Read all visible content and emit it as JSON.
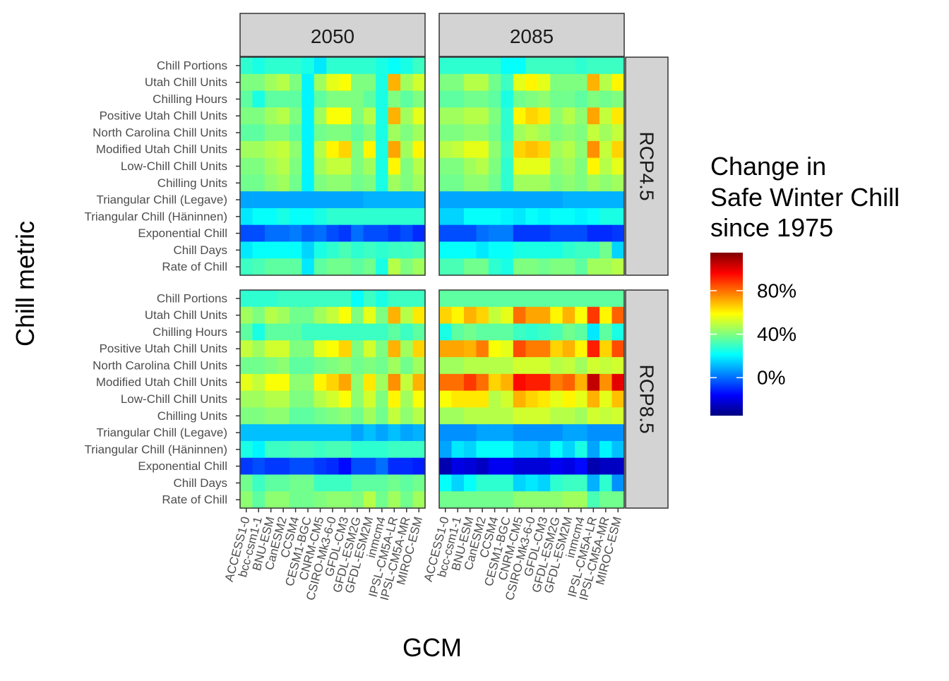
{
  "chart_data": {
    "type": "heatmap",
    "xlabel": "GCM",
    "ylabel": "Chill metric",
    "legend": {
      "title_lines": [
        "Change in",
        "Safe Winter Chill",
        "since 1975"
      ],
      "ticks": [
        {
          "value": 0,
          "label": "0%"
        },
        {
          "value": 40,
          "label": "40%"
        },
        {
          "value": 80,
          "label": "80%"
        }
      ],
      "range": [
        -35,
        115
      ],
      "placement": "right"
    },
    "colorscale": [
      "#00007f",
      "#0000ff",
      "#007fff",
      "#00ffff",
      "#7fff7f",
      "#ffff00",
      "#ff7f00",
      "#ff0000",
      "#7f0000"
    ],
    "facet_columns": [
      "2050",
      "2085"
    ],
    "facet_rows": [
      "RCP4.5",
      "RCP8.5"
    ],
    "gcms": [
      "ACCESS1-0",
      "bcc-csm1-1",
      "BNU-ESM",
      "CanESM2",
      "CCSM4",
      "CESM1-BGC",
      "CNRM-CM5",
      "CSIRO-Mk3-6-0",
      "GFDL-CM3",
      "GFDL-ESM2G",
      "GFDL-ESM2M",
      "inmcm4",
      "IPSL-CM5A-LR",
      "IPSL-CM5A-MR",
      "MIROC-ESM"
    ],
    "metrics": [
      "Chill Portions",
      "Utah Chill Units",
      "Chilling Hours",
      "Positive Utah Chill Units",
      "North Carolina Chill Units",
      "Modified Utah Chill Units",
      "Low-Chill Chill Units",
      "Chilling Units",
      "Triangular Chill (Legave)",
      "Triangular Chill (Häninnen)",
      "Exponential Chill",
      "Chill Days",
      "Rate of Chill"
    ],
    "panels": [
      {
        "year": "2050",
        "scenario": "RCP4.5",
        "values": [
          [
            28,
            25,
            28,
            28,
            28,
            25,
            18,
            28,
            28,
            28,
            28,
            25,
            22,
            25,
            30
          ],
          [
            40,
            40,
            45,
            48,
            40,
            20,
            45,
            55,
            58,
            40,
            40,
            25,
            70,
            45,
            52
          ],
          [
            35,
            25,
            35,
            35,
            35,
            20,
            35,
            40,
            40,
            40,
            35,
            25,
            40,
            35,
            40
          ],
          [
            40,
            40,
            45,
            48,
            40,
            20,
            45,
            58,
            58,
            40,
            48,
            25,
            70,
            45,
            55
          ],
          [
            35,
            35,
            40,
            40,
            35,
            20,
            38,
            40,
            40,
            35,
            40,
            25,
            45,
            40,
            45
          ],
          [
            45,
            45,
            48,
            50,
            42,
            20,
            48,
            60,
            65,
            40,
            60,
            25,
            72,
            45,
            60
          ],
          [
            40,
            40,
            45,
            48,
            40,
            20,
            45,
            50,
            50,
            40,
            45,
            25,
            60,
            40,
            48
          ],
          [
            38,
            38,
            42,
            45,
            38,
            20,
            40,
            42,
            42,
            38,
            40,
            25,
            45,
            40,
            45
          ],
          [
            8,
            8,
            8,
            8,
            8,
            8,
            8,
            8,
            8,
            8,
            10,
            10,
            10,
            10,
            10
          ],
          [
            18,
            22,
            22,
            25,
            22,
            22,
            25,
            28,
            28,
            28,
            28,
            28,
            28,
            28,
            28
          ],
          [
            -5,
            -5,
            0,
            0,
            2,
            -2,
            0,
            -5,
            -8,
            0,
            -5,
            -5,
            -8,
            -5,
            -10
          ],
          [
            18,
            22,
            22,
            22,
            22,
            15,
            25,
            28,
            32,
            28,
            30,
            28,
            30,
            30,
            32
          ],
          [
            30,
            32,
            35,
            35,
            35,
            18,
            35,
            38,
            38,
            35,
            38,
            25,
            48,
            40,
            45
          ]
        ]
      },
      {
        "year": "2085",
        "scenario": "RCP4.5",
        "values": [
          [
            28,
            28,
            28,
            28,
            28,
            22,
            22,
            30,
            30,
            30,
            30,
            28,
            30,
            30,
            30
          ],
          [
            40,
            40,
            48,
            48,
            38,
            30,
            55,
            60,
            55,
            40,
            40,
            40,
            70,
            48,
            60
          ],
          [
            35,
            35,
            38,
            38,
            35,
            25,
            38,
            40,
            42,
            38,
            38,
            35,
            40,
            38,
            40
          ],
          [
            45,
            45,
            48,
            48,
            40,
            28,
            60,
            65,
            62,
            42,
            48,
            42,
            72,
            50,
            62
          ],
          [
            40,
            40,
            42,
            42,
            38,
            28,
            45,
            48,
            45,
            40,
            42,
            40,
            50,
            45,
            50
          ],
          [
            48,
            50,
            55,
            55,
            42,
            30,
            65,
            68,
            65,
            45,
            48,
            42,
            75,
            50,
            65
          ],
          [
            40,
            40,
            45,
            48,
            40,
            28,
            55,
            55,
            55,
            42,
            45,
            40,
            60,
            48,
            55
          ],
          [
            38,
            38,
            42,
            42,
            38,
            28,
            45,
            45,
            45,
            40,
            42,
            40,
            45,
            42,
            45
          ],
          [
            8,
            8,
            8,
            8,
            8,
            8,
            8,
            8,
            8,
            8,
            10,
            10,
            10,
            10,
            10
          ],
          [
            15,
            15,
            22,
            22,
            22,
            20,
            18,
            22,
            20,
            22,
            22,
            20,
            22,
            25,
            25
          ],
          [
            -5,
            -5,
            -5,
            0,
            2,
            2,
            -8,
            -8,
            -8,
            -5,
            -5,
            -5,
            -10,
            -10,
            -8
          ],
          [
            22,
            22,
            22,
            18,
            22,
            22,
            25,
            25,
            25,
            25,
            28,
            30,
            30,
            38,
            15
          ],
          [
            32,
            32,
            38,
            38,
            28,
            25,
            40,
            40,
            38,
            40,
            40,
            35,
            45,
            45,
            48
          ]
        ]
      },
      {
        "year": "2050",
        "scenario": "RCP8.5",
        "values": [
          [
            28,
            28,
            28,
            30,
            30,
            30,
            30,
            30,
            30,
            22,
            30,
            25,
            30,
            30,
            30
          ],
          [
            45,
            40,
            48,
            45,
            38,
            38,
            45,
            50,
            58,
            40,
            55,
            40,
            70,
            48,
            62
          ],
          [
            35,
            25,
            35,
            35,
            35,
            30,
            30,
            30,
            30,
            30,
            30,
            30,
            35,
            30,
            35
          ],
          [
            50,
            45,
            52,
            52,
            40,
            40,
            55,
            58,
            65,
            40,
            52,
            40,
            70,
            45,
            65
          ],
          [
            38,
            38,
            40,
            42,
            35,
            35,
            38,
            40,
            42,
            38,
            40,
            38,
            45,
            38,
            45
          ],
          [
            55,
            50,
            58,
            58,
            42,
            42,
            60,
            65,
            72,
            42,
            62,
            45,
            75,
            50,
            70
          ],
          [
            45,
            45,
            48,
            48,
            40,
            40,
            48,
            52,
            58,
            42,
            52,
            40,
            60,
            45,
            58
          ],
          [
            40,
            40,
            42,
            42,
            35,
            35,
            38,
            40,
            42,
            38,
            45,
            38,
            50,
            42,
            48
          ],
          [
            12,
            12,
            12,
            12,
            12,
            12,
            12,
            12,
            12,
            8,
            12,
            8,
            12,
            8,
            10
          ],
          [
            25,
            20,
            30,
            30,
            32,
            32,
            30,
            32,
            32,
            28,
            28,
            28,
            30,
            30,
            30
          ],
          [
            -8,
            -5,
            -8,
            -8,
            -5,
            -5,
            -8,
            -10,
            -15,
            -5,
            -5,
            0,
            -10,
            -10,
            -12
          ],
          [
            38,
            30,
            35,
            35,
            38,
            38,
            30,
            30,
            30,
            35,
            35,
            35,
            38,
            35,
            38
          ],
          [
            42,
            35,
            42,
            42,
            38,
            38,
            40,
            42,
            42,
            40,
            48,
            38,
            45,
            38,
            45
          ]
        ]
      },
      {
        "year": "2085",
        "scenario": "RCP8.5",
        "values": [
          [
            35,
            35,
            35,
            35,
            35,
            35,
            35,
            35,
            35,
            35,
            35,
            35,
            35,
            35,
            35
          ],
          [
            65,
            60,
            70,
            65,
            50,
            55,
            80,
            72,
            72,
            60,
            70,
            58,
            88,
            60,
            82
          ],
          [
            25,
            35,
            38,
            35,
            35,
            35,
            30,
            28,
            30,
            32,
            38,
            35,
            18,
            35,
            25
          ],
          [
            72,
            72,
            70,
            78,
            58,
            55,
            85,
            78,
            78,
            65,
            70,
            60,
            92,
            65,
            85
          ],
          [
            45,
            45,
            48,
            48,
            48,
            48,
            52,
            52,
            52,
            48,
            50,
            45,
            52,
            50,
            52
          ],
          [
            80,
            80,
            88,
            80,
            65,
            70,
            95,
            92,
            92,
            78,
            82,
            70,
            105,
            75,
            100
          ],
          [
            58,
            62,
            62,
            62,
            48,
            52,
            70,
            65,
            62,
            55,
            60,
            55,
            70,
            55,
            68
          ],
          [
            45,
            45,
            48,
            48,
            48,
            48,
            52,
            52,
            52,
            48,
            48,
            45,
            52,
            50,
            52
          ],
          [
            5,
            5,
            5,
            8,
            8,
            8,
            5,
            5,
            5,
            5,
            8,
            8,
            5,
            5,
            5
          ],
          [
            8,
            18,
            15,
            22,
            22,
            22,
            15,
            15,
            12,
            22,
            15,
            25,
            8,
            20,
            12
          ],
          [
            -28,
            -20,
            -22,
            -25,
            -18,
            -18,
            -22,
            -22,
            -22,
            -18,
            -20,
            -15,
            -28,
            -25,
            -25
          ],
          [
            22,
            15,
            22,
            28,
            28,
            28,
            15,
            18,
            15,
            28,
            30,
            30,
            10,
            28,
            5
          ],
          [
            38,
            38,
            38,
            38,
            38,
            38,
            42,
            42,
            42,
            42,
            45,
            45,
            32,
            38,
            38
          ]
        ]
      }
    ]
  }
}
